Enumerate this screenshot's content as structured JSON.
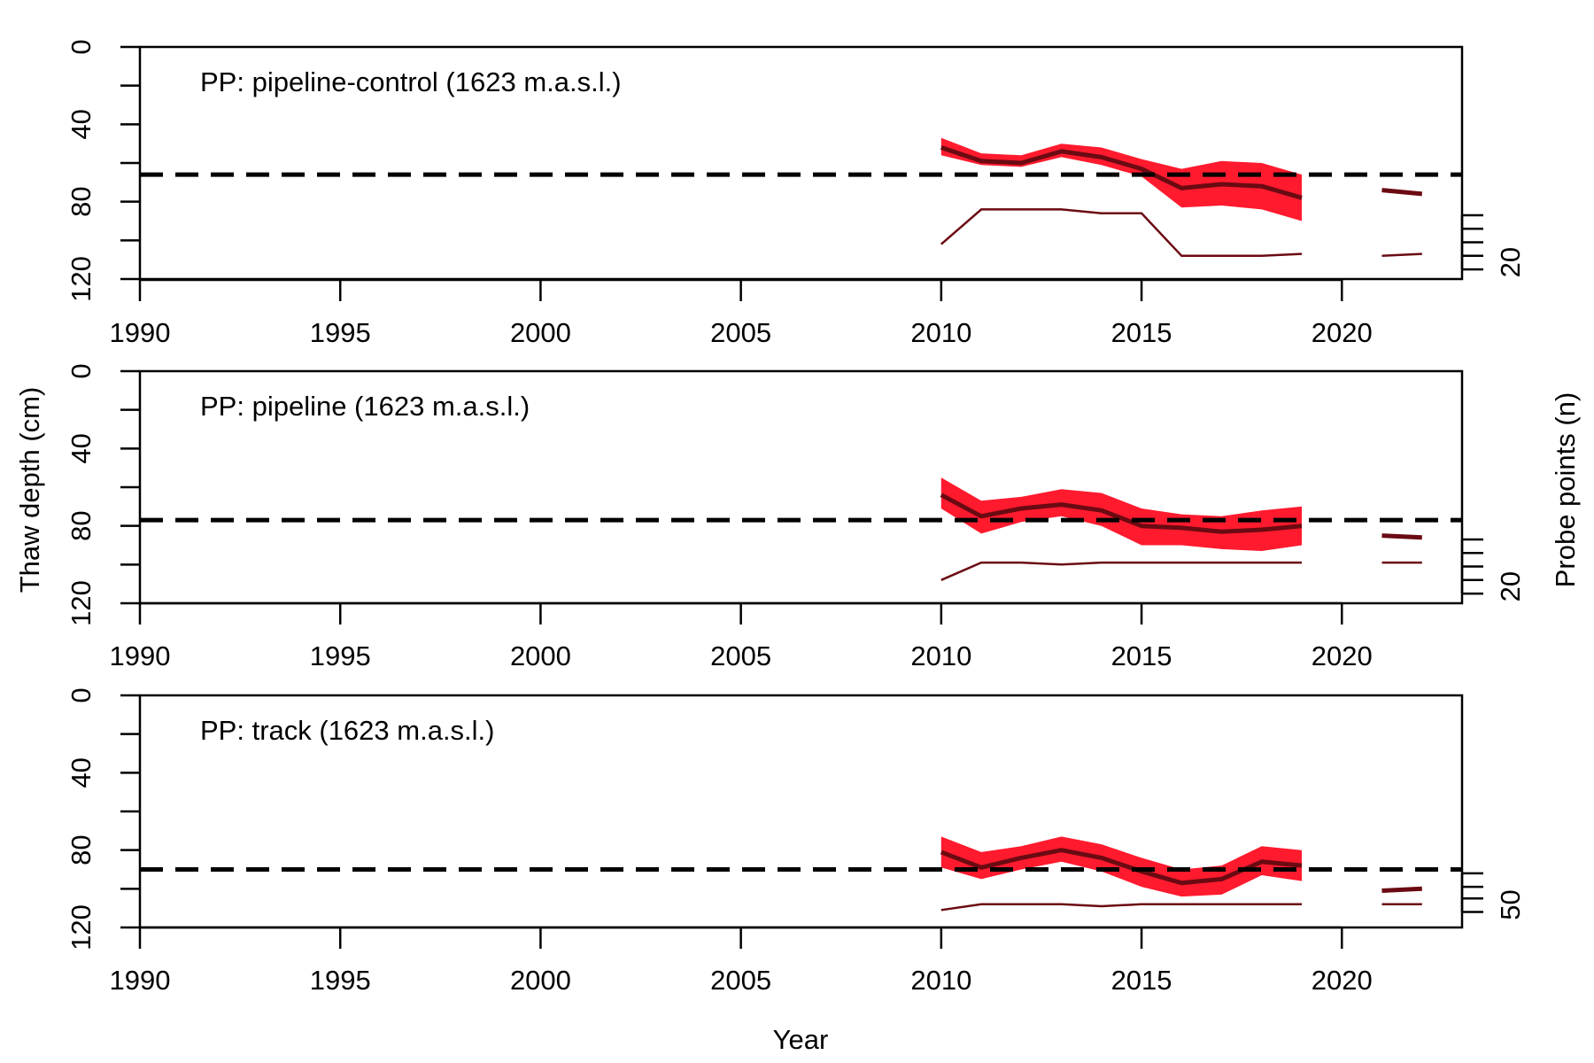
{
  "figure": {
    "x_axis_title": "Year",
    "y_axis_title_left": "Thaw depth (cm)",
    "y_axis_title_right": "Probe points (n)"
  },
  "colors": {
    "band": "#ff1a2e",
    "mean_line": "#6b0a12",
    "count_line": "#6b0a12",
    "dashed": "#000000",
    "axis": "#000000"
  },
  "chart_data": [
    {
      "type": "line",
      "title": "PP: pipeline-control (1623 m.a.s.l.)",
      "xlabel": "Year",
      "ylabel": "Thaw depth (cm)",
      "xlim": [
        1990,
        2023
      ],
      "ylim": [
        120,
        0
      ],
      "x_ticks": [
        1990,
        1995,
        2000,
        2005,
        2010,
        2015,
        2020
      ],
      "y_ticks": [
        0,
        40,
        80,
        120
      ],
      "y_minor_ticks": [
        20,
        60,
        100
      ],
      "y2_label": "Probe points (n)",
      "y2_ticks": [
        20
      ],
      "reference_line": 66,
      "series": [
        {
          "x": [
            2010,
            2011,
            2012,
            2013,
            2014,
            2015,
            2016,
            2017,
            2018,
            2019
          ],
          "mean": [
            52,
            59,
            60,
            54,
            57,
            63,
            73,
            71,
            72,
            78
          ],
          "lower": [
            47,
            55,
            56,
            50,
            52,
            58,
            63,
            59,
            60,
            66
          ],
          "upper": [
            56,
            61,
            62,
            57,
            61,
            67,
            83,
            82,
            84,
            90
          ]
        },
        {
          "x": [
            2021,
            2022
          ],
          "mean": [
            74,
            76
          ]
        }
      ],
      "counts": [
        {
          "x": [
            2010,
            2011,
            2012,
            2013,
            2014,
            2015,
            2016,
            2017,
            2018,
            2019
          ],
          "y": [
            102,
            84,
            84,
            84,
            86,
            86,
            108,
            108,
            108,
            107
          ]
        },
        {
          "x": [
            2021,
            2022
          ],
          "y": [
            108,
            107
          ]
        }
      ],
      "count_ticks_y": [
        87,
        94,
        101,
        108,
        115
      ]
    },
    {
      "type": "line",
      "title": "PP: pipeline (1623 m.a.s.l.)",
      "xlabel": "Year",
      "ylabel": "Thaw depth (cm)",
      "xlim": [
        1990,
        2023
      ],
      "ylim": [
        120,
        0
      ],
      "x_ticks": [
        1990,
        1995,
        2000,
        2005,
        2010,
        2015,
        2020
      ],
      "y_ticks": [
        0,
        40,
        80,
        120
      ],
      "y_minor_ticks": [
        20,
        60,
        100
      ],
      "y2_label": "Probe points (n)",
      "y2_ticks": [
        20
      ],
      "reference_line": 77,
      "series": [
        {
          "x": [
            2010,
            2011,
            2012,
            2013,
            2014,
            2015,
            2016,
            2017,
            2018,
            2019
          ],
          "mean": [
            64,
            75,
            71,
            69,
            72,
            80,
            81,
            83,
            82,
            80
          ],
          "lower": [
            55,
            67,
            65,
            61,
            63,
            71,
            74,
            75,
            72,
            70
          ],
          "upper": [
            71,
            84,
            78,
            75,
            80,
            90,
            90,
            92,
            93,
            90
          ]
        },
        {
          "x": [
            2021,
            2022
          ],
          "mean": [
            85,
            86
          ]
        }
      ],
      "counts": [
        {
          "x": [
            2010,
            2011,
            2012,
            2013,
            2014,
            2015,
            2016,
            2017,
            2018,
            2019
          ],
          "y": [
            108,
            99,
            99,
            100,
            99,
            99,
            99,
            99,
            99,
            99
          ]
        },
        {
          "x": [
            2021,
            2022
          ],
          "y": [
            99,
            99
          ]
        }
      ],
      "count_ticks_y": [
        87,
        94,
        101,
        108,
        115
      ]
    },
    {
      "type": "line",
      "title": "PP: track (1623 m.a.s.l.)",
      "xlabel": "Year",
      "ylabel": "Thaw depth (cm)",
      "xlim": [
        1990,
        2023
      ],
      "ylim": [
        120,
        0
      ],
      "x_ticks": [
        1990,
        1995,
        2000,
        2005,
        2010,
        2015,
        2020
      ],
      "y_ticks": [
        0,
        40,
        80,
        120
      ],
      "y_minor_ticks": [
        20,
        60,
        100
      ],
      "y2_label": "Probe points (n)",
      "y2_ticks": [
        50
      ],
      "reference_line": 90,
      "series": [
        {
          "x": [
            2010,
            2011,
            2012,
            2013,
            2014,
            2015,
            2016,
            2017,
            2018,
            2019
          ],
          "mean": [
            81,
            89,
            84,
            80,
            84,
            91,
            97,
            95,
            86,
            88
          ],
          "lower": [
            73,
            81,
            78,
            73,
            77,
            84,
            90,
            88,
            78,
            80
          ],
          "upper": [
            89,
            95,
            90,
            86,
            91,
            99,
            104,
            103,
            93,
            96
          ]
        },
        {
          "x": [
            2021,
            2022
          ],
          "mean": [
            101,
            100
          ]
        }
      ],
      "counts": [
        {
          "x": [
            2010,
            2011,
            2012,
            2013,
            2014,
            2015,
            2016,
            2017,
            2018,
            2019
          ],
          "y": [
            111,
            108,
            108,
            108,
            109,
            108,
            108,
            108,
            108,
            108
          ]
        },
        {
          "x": [
            2021,
            2022
          ],
          "y": [
            108,
            108
          ]
        }
      ],
      "count_ticks_y": [
        92,
        99,
        105,
        112
      ]
    }
  ]
}
